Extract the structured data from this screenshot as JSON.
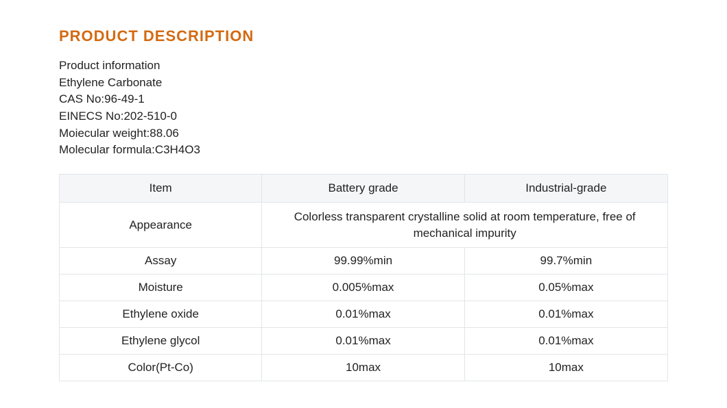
{
  "heading": {
    "text": "PRODUCT  DESCRIPTION",
    "color": "#d46a12",
    "fontsize": 22,
    "weight": "bold"
  },
  "info": {
    "lines": [
      "Product information",
      "Ethylene Carbonate",
      "CAS No:96-49-1",
      "EINECS No:202-510-0",
      "Moiecular weight:88.06",
      "Molecular formula:C3H4O3"
    ],
    "text_color": "#222222",
    "fontsize": 17
  },
  "table": {
    "header_bg": "#f4f6f8",
    "border_color": "#e2e5e8",
    "text_color": "#222222",
    "fontsize": 17,
    "col_widths_percent": [
      33.3,
      33.3,
      33.4
    ],
    "columns": [
      "Item",
      "Battery grade",
      "Industrial-grade"
    ],
    "rows": [
      {
        "item": "Appearance",
        "merged": true,
        "value": "Colorless transparent crystalline solid at room temperature, free of mechanical impurity"
      },
      {
        "item": "Assay",
        "battery": "99.99%min",
        "industrial": "99.7%min"
      },
      {
        "item": "Moisture",
        "battery": "0.005%max",
        "industrial": "0.05%max"
      },
      {
        "item": "Ethylene oxide",
        "battery": "0.01%max",
        "industrial": "0.01%max"
      },
      {
        "item": "Ethylene glycol",
        "battery": "0.01%max",
        "industrial": "0.01%max"
      },
      {
        "item": "Color(Pt-Co)",
        "battery": "10max",
        "industrial": "10max"
      }
    ]
  }
}
